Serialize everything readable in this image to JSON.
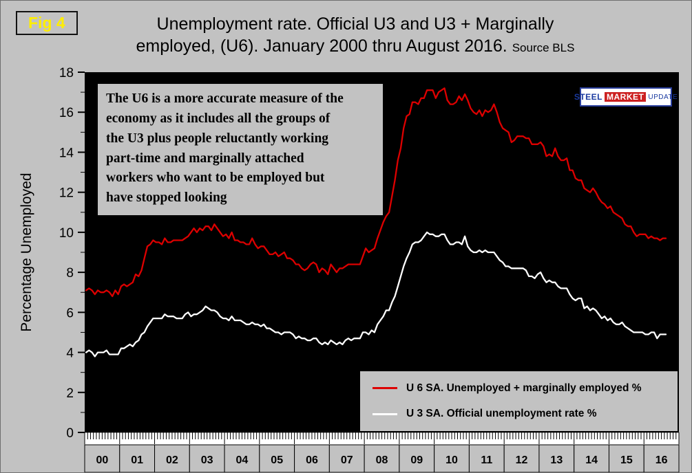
{
  "fig_label": "Fig 4",
  "title": {
    "line1": "Unemployment rate. Official U3 and U3 + Marginally",
    "line2": "employed, (U6). January 2000 thru August 2016.",
    "source": "Source BLS"
  },
  "annotation": {
    "text": "The U6 is a more accurate measure of the\neconomy as it includes all the groups of\nthe U3 plus people reluctantly working\npart-time and marginally attached\nworkers who want to be employed but\nhave stopped looking"
  },
  "logo": {
    "steel": "STEEL",
    "market": "MARKET",
    "update": "UPDATE"
  },
  "ylabel": "Percentage Unemployed",
  "legend": [
    {
      "label": "U 6 SA. Unemployed + marginally employed %",
      "color": "#dd0000"
    },
    {
      "label": "U 3 SA. Official unemployment rate %",
      "color": "#ffffff"
    }
  ],
  "colors": {
    "background": "#c2c2c2",
    "plot_background": "#000000",
    "u6_line": "#dd0000",
    "u3_line": "#ffffff",
    "fig_label": "#ffee00"
  },
  "chart_data": {
    "type": "line",
    "title": "Unemployment rate. Official U3 and U3 + Marginally employed, (U6). January 2000 thru August 2016.",
    "xlabel": "",
    "ylabel": "Percentage Unemployed",
    "ylim": [
      0,
      18
    ],
    "ytick_step": 2,
    "grid": false,
    "legend_position": "lower right",
    "x_start": "2000-01",
    "x_end": "2016-08",
    "x_axis_total_months": 204,
    "year_labels": [
      "00",
      "01",
      "02",
      "03",
      "04",
      "05",
      "06",
      "07",
      "08",
      "09",
      "10",
      "11",
      "12",
      "13",
      "14",
      "15",
      "16"
    ],
    "series": [
      {
        "name": "U 6 SA. Unemployed + marginally employed %",
        "color": "#dd0000",
        "values": [
          7.1,
          7.2,
          7.1,
          6.9,
          7.1,
          7.0,
          7.0,
          7.1,
          7.0,
          6.8,
          7.1,
          6.9,
          7.3,
          7.4,
          7.3,
          7.4,
          7.5,
          7.9,
          7.8,
          8.1,
          8.7,
          9.3,
          9.4,
          9.6,
          9.5,
          9.5,
          9.4,
          9.7,
          9.5,
          9.5,
          9.6,
          9.6,
          9.6,
          9.6,
          9.7,
          9.8,
          10.0,
          10.2,
          10.0,
          10.2,
          10.1,
          10.3,
          10.3,
          10.1,
          10.4,
          10.2,
          10.0,
          9.8,
          9.9,
          9.7,
          10.0,
          9.6,
          9.6,
          9.5,
          9.5,
          9.4,
          9.4,
          9.7,
          9.4,
          9.2,
          9.3,
          9.3,
          9.1,
          8.9,
          8.9,
          9.0,
          8.8,
          8.9,
          9.0,
          8.7,
          8.7,
          8.6,
          8.4,
          8.4,
          8.2,
          8.1,
          8.2,
          8.4,
          8.5,
          8.4,
          8.0,
          8.2,
          8.1,
          7.9,
          8.4,
          8.2,
          8.0,
          8.2,
          8.2,
          8.3,
          8.4,
          8.4,
          8.4,
          8.4,
          8.4,
          8.8,
          9.2,
          9.0,
          9.1,
          9.2,
          9.7,
          10.1,
          10.5,
          10.8,
          11.0,
          11.8,
          12.6,
          13.6,
          14.2,
          15.2,
          15.8,
          15.9,
          16.5,
          16.5,
          16.4,
          16.7,
          16.7,
          17.1,
          17.1,
          17.1,
          16.7,
          17.0,
          17.1,
          17.2,
          16.6,
          16.4,
          16.4,
          16.5,
          16.8,
          16.6,
          16.9,
          16.6,
          16.2,
          16.0,
          15.9,
          16.1,
          15.8,
          16.1,
          16.0,
          16.1,
          16.4,
          16.0,
          15.5,
          15.2,
          15.1,
          15.0,
          14.5,
          14.6,
          14.8,
          14.8,
          14.8,
          14.7,
          14.7,
          14.4,
          14.4,
          14.4,
          14.5,
          14.3,
          13.8,
          13.9,
          13.8,
          14.2,
          13.8,
          13.6,
          13.6,
          13.7,
          13.1,
          13.1,
          12.7,
          12.6,
          12.6,
          12.2,
          12.1,
          12.0,
          12.2,
          12.0,
          11.7,
          11.5,
          11.4,
          11.2,
          11.3,
          11.0,
          10.9,
          10.8,
          10.7,
          10.4,
          10.3,
          10.3,
          10.0,
          9.8,
          9.9,
          9.9,
          9.9,
          9.7,
          9.8,
          9.7,
          9.7,
          9.6,
          9.7,
          9.7
        ]
      },
      {
        "name": "U 3 SA. Official unemployment rate %",
        "color": "#ffffff",
        "values": [
          4.0,
          4.1,
          4.0,
          3.8,
          4.0,
          4.0,
          4.0,
          4.1,
          3.9,
          3.9,
          3.9,
          3.9,
          4.2,
          4.2,
          4.3,
          4.4,
          4.3,
          4.5,
          4.6,
          4.9,
          5.0,
          5.3,
          5.5,
          5.7,
          5.7,
          5.7,
          5.7,
          5.9,
          5.8,
          5.8,
          5.8,
          5.7,
          5.7,
          5.7,
          5.9,
          6.0,
          5.8,
          5.9,
          5.9,
          6.0,
          6.1,
          6.3,
          6.2,
          6.1,
          6.1,
          6.0,
          5.8,
          5.7,
          5.7,
          5.6,
          5.8,
          5.6,
          5.6,
          5.6,
          5.5,
          5.4,
          5.4,
          5.5,
          5.4,
          5.4,
          5.3,
          5.4,
          5.2,
          5.2,
          5.1,
          5.0,
          5.0,
          4.9,
          5.0,
          5.0,
          5.0,
          4.9,
          4.7,
          4.8,
          4.7,
          4.7,
          4.6,
          4.6,
          4.7,
          4.7,
          4.5,
          4.4,
          4.5,
          4.4,
          4.6,
          4.5,
          4.4,
          4.5,
          4.4,
          4.6,
          4.7,
          4.6,
          4.7,
          4.7,
          4.7,
          5.0,
          5.0,
          4.9,
          5.1,
          5.0,
          5.4,
          5.6,
          5.8,
          6.1,
          6.1,
          6.5,
          6.8,
          7.3,
          7.8,
          8.3,
          8.7,
          9.0,
          9.4,
          9.5,
          9.5,
          9.6,
          9.8,
          10.0,
          9.9,
          9.9,
          9.8,
          9.8,
          9.9,
          9.9,
          9.6,
          9.4,
          9.4,
          9.5,
          9.5,
          9.4,
          9.8,
          9.3,
          9.1,
          9.0,
          9.0,
          9.1,
          9.0,
          9.1,
          9.0,
          9.0,
          9.0,
          8.8,
          8.6,
          8.5,
          8.3,
          8.3,
          8.2,
          8.2,
          8.2,
          8.2,
          8.2,
          8.1,
          7.8,
          7.8,
          7.7,
          7.9,
          8.0,
          7.7,
          7.5,
          7.6,
          7.5,
          7.5,
          7.3,
          7.2,
          7.2,
          7.2,
          6.9,
          6.7,
          6.6,
          6.7,
          6.7,
          6.2,
          6.3,
          6.1,
          6.2,
          6.1,
          5.9,
          5.7,
          5.8,
          5.6,
          5.7,
          5.5,
          5.4,
          5.4,
          5.5,
          5.3,
          5.2,
          5.1,
          5.0,
          5.0,
          5.0,
          5.0,
          4.9,
          4.9,
          5.0,
          5.0,
          4.7,
          4.9,
          4.9,
          4.9
        ]
      }
    ]
  }
}
